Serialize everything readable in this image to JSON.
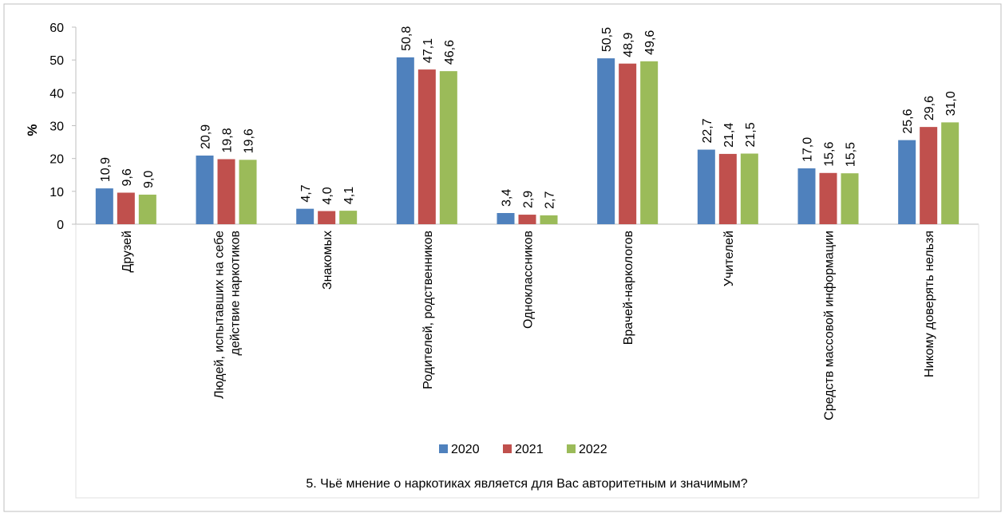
{
  "chart_data": {
    "type": "bar",
    "title": "",
    "xlabel": "5. Чьё мнение о наркотиках является для Вас авторитетным и значимым?",
    "ylabel": "%",
    "ylim": [
      0,
      60
    ],
    "yticks": [
      0,
      10,
      20,
      30,
      40,
      50,
      60
    ],
    "grid": false,
    "legend_position": "bottom",
    "categories": [
      [
        "Друзей"
      ],
      [
        "Людей, испытавших на себе",
        "действие наркотиков"
      ],
      [
        "Знакомых"
      ],
      [
        "Родителей, родственников"
      ],
      [
        "Одноклассников"
      ],
      [
        "Врачей-наркологов"
      ],
      [
        "Учителей"
      ],
      [
        "Средств массовой информации"
      ],
      [
        "Никому доверять нельзя"
      ]
    ],
    "series": [
      {
        "name": "2020",
        "color": "#4F81BD",
        "values": [
          10.9,
          20.9,
          4.7,
          50.8,
          3.4,
          50.5,
          22.7,
          17.0,
          25.6
        ],
        "labels": [
          "10,9",
          "20,9",
          "4,7",
          "50,8",
          "3,4",
          "50,5",
          "22,7",
          "17,0",
          "25,6"
        ]
      },
      {
        "name": "2021",
        "color": "#C0504D",
        "values": [
          9.6,
          19.8,
          4.0,
          47.1,
          2.9,
          48.9,
          21.4,
          15.6,
          29.6
        ],
        "labels": [
          "9,6",
          "19,8",
          "4,0",
          "47,1",
          "2,9",
          "48,9",
          "21,4",
          "15,6",
          "29,6"
        ]
      },
      {
        "name": "2022",
        "color": "#9BBB59",
        "values": [
          9.0,
          19.6,
          4.1,
          46.6,
          2.7,
          49.6,
          21.5,
          15.5,
          31.0
        ],
        "labels": [
          "9,0",
          "19,6",
          "4,1",
          "46,6",
          "2,7",
          "49,6",
          "21,5",
          "15,5",
          "31,0"
        ]
      }
    ]
  }
}
